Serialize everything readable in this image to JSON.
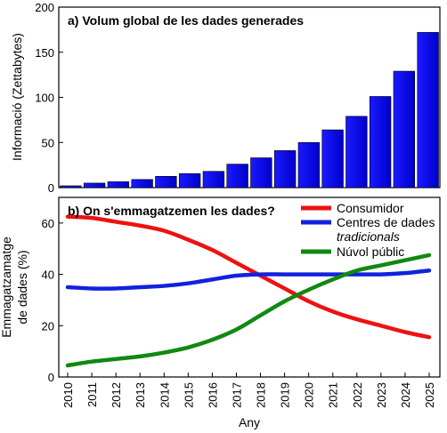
{
  "chart_data": [
    {
      "type": "bar",
      "title": "a) Volum global de les dades generades",
      "ylabel": "Informació (Zettabytes)",
      "xlabel": "",
      "categories": [
        "2010",
        "2011",
        "2012",
        "2013",
        "2014",
        "2015",
        "2016",
        "2017",
        "2018",
        "2019",
        "2020",
        "2021",
        "2022",
        "2023",
        "2024",
        "2025"
      ],
      "values": [
        2,
        5,
        6.5,
        9,
        12.5,
        15.5,
        18,
        26,
        33,
        41,
        50,
        64,
        79,
        101,
        129,
        172
      ],
      "ylim": [
        0,
        200
      ],
      "yticks": [
        0,
        50,
        100,
        150,
        200
      ],
      "color": "#0000cc",
      "grid": false
    },
    {
      "type": "line",
      "title": "b) On s'emmagatzemen les dades?",
      "ylabel_line1": "Emmagatzamatge",
      "ylabel_line2": "de dades (%)",
      "xlabel": "Any",
      "x": [
        "2010",
        "2011",
        "2012",
        "2013",
        "2014",
        "2015",
        "2016",
        "2017",
        "2018",
        "2019",
        "2020",
        "2021",
        "2022",
        "2023",
        "2024",
        "2025"
      ],
      "ylim": [
        0,
        70
      ],
      "yticks": [
        0,
        20,
        40,
        60
      ],
      "legend_position": "top-right",
      "grid": false,
      "series": [
        {
          "name": "Consumidor",
          "color": "#ee1111",
          "values": [
            62.5,
            62,
            60.5,
            59,
            57,
            53.5,
            49.5,
            44.5,
            39.5,
            34.5,
            29.5,
            25.5,
            22.5,
            20,
            17.5,
            15.5
          ]
        },
        {
          "name": "Centres de dades",
          "name_line2": "tradicionals",
          "color": "#1122dd",
          "values": [
            35,
            34.5,
            34.5,
            35,
            35.5,
            36.5,
            38,
            39.5,
            40,
            40,
            40,
            40,
            40,
            40,
            40.5,
            41.5
          ]
        },
        {
          "name": "Núvol públic",
          "color": "#118811",
          "values": [
            4.5,
            6,
            7,
            8,
            9.5,
            11.5,
            14.5,
            18.5,
            24,
            29.5,
            34,
            38,
            41.5,
            43.5,
            45.5,
            47.5
          ]
        }
      ]
    }
  ]
}
